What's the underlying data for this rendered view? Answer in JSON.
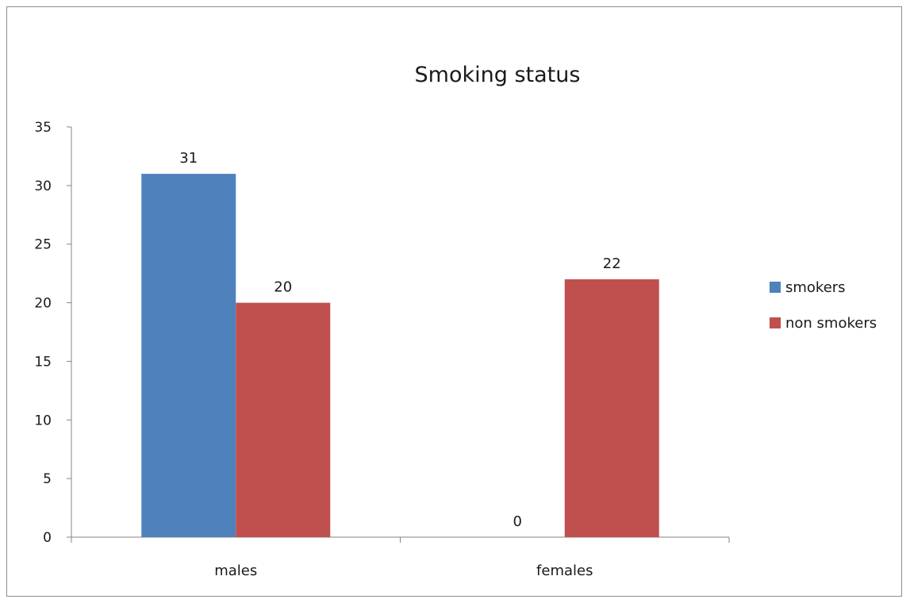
{
  "chart_data": {
    "type": "bar",
    "title": "Smoking status",
    "xlabel": "",
    "ylabel": "",
    "categories": [
      "males",
      "females"
    ],
    "series": [
      {
        "name": "smokers",
        "values": [
          31,
          0
        ],
        "color": "#4f81bd"
      },
      {
        "name": "non smokers",
        "values": [
          20,
          22
        ],
        "color": "#c0504d"
      }
    ],
    "ylim": [
      0,
      35
    ],
    "yticks": [
      0,
      5,
      10,
      15,
      20,
      25,
      30,
      35
    ],
    "grid": false,
    "legend": "right",
    "data_labels": true
  }
}
